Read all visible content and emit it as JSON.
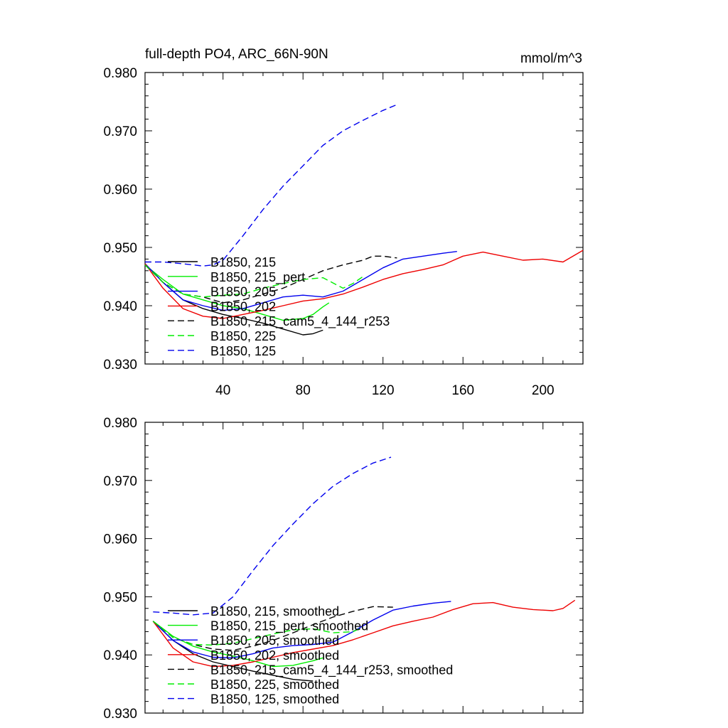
{
  "chart_data": [
    {
      "type": "line",
      "title": "full-depth PO4, ARC_66N-90N",
      "units": "mmol/m^3",
      "xlabel": "",
      "ylabel": "",
      "xlim": [
        1,
        220
      ],
      "ylim": [
        0.93,
        0.98
      ],
      "xticks": [
        40,
        80,
        120,
        160,
        200
      ],
      "xtick_labels": [
        "40",
        "80",
        "120",
        "160",
        "200"
      ],
      "yticks": [
        0.93,
        0.94,
        0.95,
        0.96,
        0.97,
        0.98
      ],
      "ytick_labels": [
        "0.930",
        "0.940",
        "0.950",
        "0.960",
        "0.970",
        "0.980"
      ],
      "legend_position": "bottom-left",
      "series": [
        {
          "name": "B1850, 215",
          "color": "#000000",
          "dash": "solid",
          "x": [
            1,
            10,
            20,
            30,
            40,
            50,
            60,
            70,
            80,
            85,
            90
          ],
          "y": [
            0.9472,
            0.944,
            0.941,
            0.9395,
            0.9385,
            0.9378,
            0.937,
            0.936,
            0.935,
            0.9352,
            0.9358
          ]
        },
        {
          "name": "B1850, 215_pert",
          "color": "#00ee00",
          "dash": "solid",
          "x": [
            1,
            10,
            20,
            30,
            40,
            50,
            60,
            70,
            80,
            85,
            90,
            93
          ],
          "y": [
            0.947,
            0.9445,
            0.942,
            0.941,
            0.94,
            0.9395,
            0.9385,
            0.9375,
            0.9378,
            0.9385,
            0.9398,
            0.9405
          ]
        },
        {
          "name": "B1850, 205",
          "color": "#0000ee",
          "dash": "solid",
          "x": [
            1,
            10,
            20,
            30,
            40,
            50,
            60,
            70,
            80,
            90,
            100,
            110,
            120,
            130,
            140,
            150,
            157
          ],
          "y": [
            0.9472,
            0.944,
            0.941,
            0.94,
            0.9392,
            0.9395,
            0.9405,
            0.9415,
            0.9418,
            0.9415,
            0.9425,
            0.9445,
            0.9465,
            0.948,
            0.9485,
            0.949,
            0.9493
          ]
        },
        {
          "name": "B1850, 202",
          "color": "#ee0000",
          "dash": "solid",
          "x": [
            1,
            10,
            20,
            30,
            40,
            50,
            60,
            70,
            80,
            90,
            100,
            110,
            120,
            130,
            140,
            150,
            160,
            170,
            180,
            190,
            200,
            210,
            220
          ],
          "y": [
            0.9472,
            0.943,
            0.9395,
            0.9382,
            0.9378,
            0.9385,
            0.9392,
            0.94,
            0.9408,
            0.9412,
            0.942,
            0.9432,
            0.9445,
            0.9455,
            0.9462,
            0.947,
            0.9485,
            0.9492,
            0.9485,
            0.9478,
            0.948,
            0.9475,
            0.9495
          ]
        },
        {
          "name": "B1850, 215_cam5_4_144_r253",
          "color": "#000000",
          "dash": "dashed",
          "x": [
            1,
            10,
            20,
            30,
            40,
            50,
            60,
            70,
            80,
            90,
            100,
            110,
            115,
            120,
            127
          ],
          "y": [
            0.947,
            0.944,
            0.942,
            0.9415,
            0.9405,
            0.941,
            0.942,
            0.943,
            0.9445,
            0.946,
            0.947,
            0.9478,
            0.9485,
            0.9485,
            0.9482
          ]
        },
        {
          "name": "B1850, 225",
          "color": "#00ee00",
          "dash": "dashed",
          "x": [
            1,
            10,
            20,
            30,
            40,
            50,
            60,
            70,
            80,
            90,
            100,
            105,
            110
          ],
          "y": [
            0.947,
            0.944,
            0.942,
            0.9415,
            0.9418,
            0.942,
            0.943,
            0.9438,
            0.9445,
            0.9448,
            0.943,
            0.9438,
            0.945
          ]
        },
        {
          "name": "B1850, 125",
          "color": "#0000ee",
          "dash": "dashed",
          "x": [
            1,
            10,
            20,
            30,
            35,
            40,
            50,
            60,
            70,
            80,
            90,
            100,
            110,
            120,
            127
          ],
          "y": [
            0.9475,
            0.9475,
            0.9472,
            0.9468,
            0.947,
            0.9478,
            0.952,
            0.9565,
            0.9605,
            0.964,
            0.9675,
            0.97,
            0.9718,
            0.9735,
            0.9745
          ]
        }
      ]
    },
    {
      "type": "line",
      "title": "",
      "xlabel": "",
      "ylabel": "",
      "xlim": [
        1,
        220
      ],
      "ylim": [
        0.93,
        0.98
      ],
      "xticks": [
        40,
        80,
        120,
        160,
        200
      ],
      "xtick_labels": [],
      "yticks": [
        0.93,
        0.94,
        0.95,
        0.96,
        0.97,
        0.98
      ],
      "ytick_labels": [
        "0.930",
        "0.940",
        "0.950",
        "0.960",
        "0.970",
        "0.980"
      ],
      "legend_position": "bottom-left",
      "series": [
        {
          "name": "B1850, 215, smoothed",
          "color": "#000000",
          "dash": "solid",
          "x": [
            5,
            15,
            25,
            35,
            45,
            55,
            65,
            75,
            85
          ],
          "y": [
            0.9458,
            0.9425,
            0.9402,
            0.9388,
            0.938,
            0.9372,
            0.9365,
            0.9358,
            0.9355
          ]
        },
        {
          "name": "B1850, 215_pert, smoothed",
          "color": "#00ee00",
          "dash": "solid",
          "x": [
            5,
            15,
            25,
            35,
            45,
            55,
            65,
            75,
            85,
            90
          ],
          "y": [
            0.9458,
            0.9432,
            0.9415,
            0.9405,
            0.9398,
            0.939,
            0.938,
            0.9382,
            0.939,
            0.9395
          ]
        },
        {
          "name": "B1850, 205, smoothed",
          "color": "#0000ee",
          "dash": "solid",
          "x": [
            5,
            15,
            25,
            35,
            45,
            55,
            65,
            75,
            85,
            95,
            105,
            115,
            125,
            135,
            145,
            154
          ],
          "y": [
            0.9458,
            0.9425,
            0.9405,
            0.9396,
            0.9395,
            0.9402,
            0.9412,
            0.9416,
            0.9418,
            0.9422,
            0.944,
            0.946,
            0.9477,
            0.9484,
            0.9489,
            0.9492
          ]
        },
        {
          "name": "B1850, 202, smoothed",
          "color": "#ee0000",
          "dash": "solid",
          "x": [
            5,
            15,
            25,
            35,
            45,
            55,
            65,
            75,
            85,
            95,
            105,
            115,
            125,
            135,
            145,
            155,
            165,
            175,
            185,
            195,
            205,
            210,
            216
          ],
          "y": [
            0.9458,
            0.9412,
            0.9388,
            0.938,
            0.9382,
            0.9388,
            0.9396,
            0.9404,
            0.941,
            0.9416,
            0.9426,
            0.9438,
            0.945,
            0.9458,
            0.9465,
            0.9478,
            0.9488,
            0.949,
            0.9482,
            0.9478,
            0.9476,
            0.948,
            0.9494
          ]
        },
        {
          "name": "B1850, 215_cam5_4_144_r253, smoothed",
          "color": "#000000",
          "dash": "dashed",
          "x": [
            5,
            15,
            25,
            35,
            45,
            55,
            65,
            75,
            85,
            95,
            105,
            115,
            125
          ],
          "y": [
            0.9458,
            0.943,
            0.9418,
            0.941,
            0.9408,
            0.9415,
            0.9425,
            0.9438,
            0.9452,
            0.9465,
            0.9475,
            0.9483,
            0.9482
          ]
        },
        {
          "name": "B1850, 225, smoothed",
          "color": "#00ee00",
          "dash": "dashed",
          "x": [
            5,
            15,
            25,
            35,
            45,
            55,
            65,
            75,
            85,
            95,
            105,
            110
          ],
          "y": [
            0.9458,
            0.943,
            0.9418,
            0.9417,
            0.942,
            0.9428,
            0.9436,
            0.9443,
            0.9445,
            0.9438,
            0.944,
            0.9448
          ]
        },
        {
          "name": "B1850, 125, smoothed",
          "color": "#0000ee",
          "dash": "dashed",
          "x": [
            5,
            15,
            25,
            35,
            45,
            55,
            65,
            75,
            85,
            95,
            105,
            115,
            124
          ],
          "y": [
            0.9474,
            0.9472,
            0.9469,
            0.9472,
            0.95,
            0.9545,
            0.9588,
            0.9625,
            0.966,
            0.969,
            0.9712,
            0.973,
            0.974
          ]
        }
      ]
    }
  ]
}
